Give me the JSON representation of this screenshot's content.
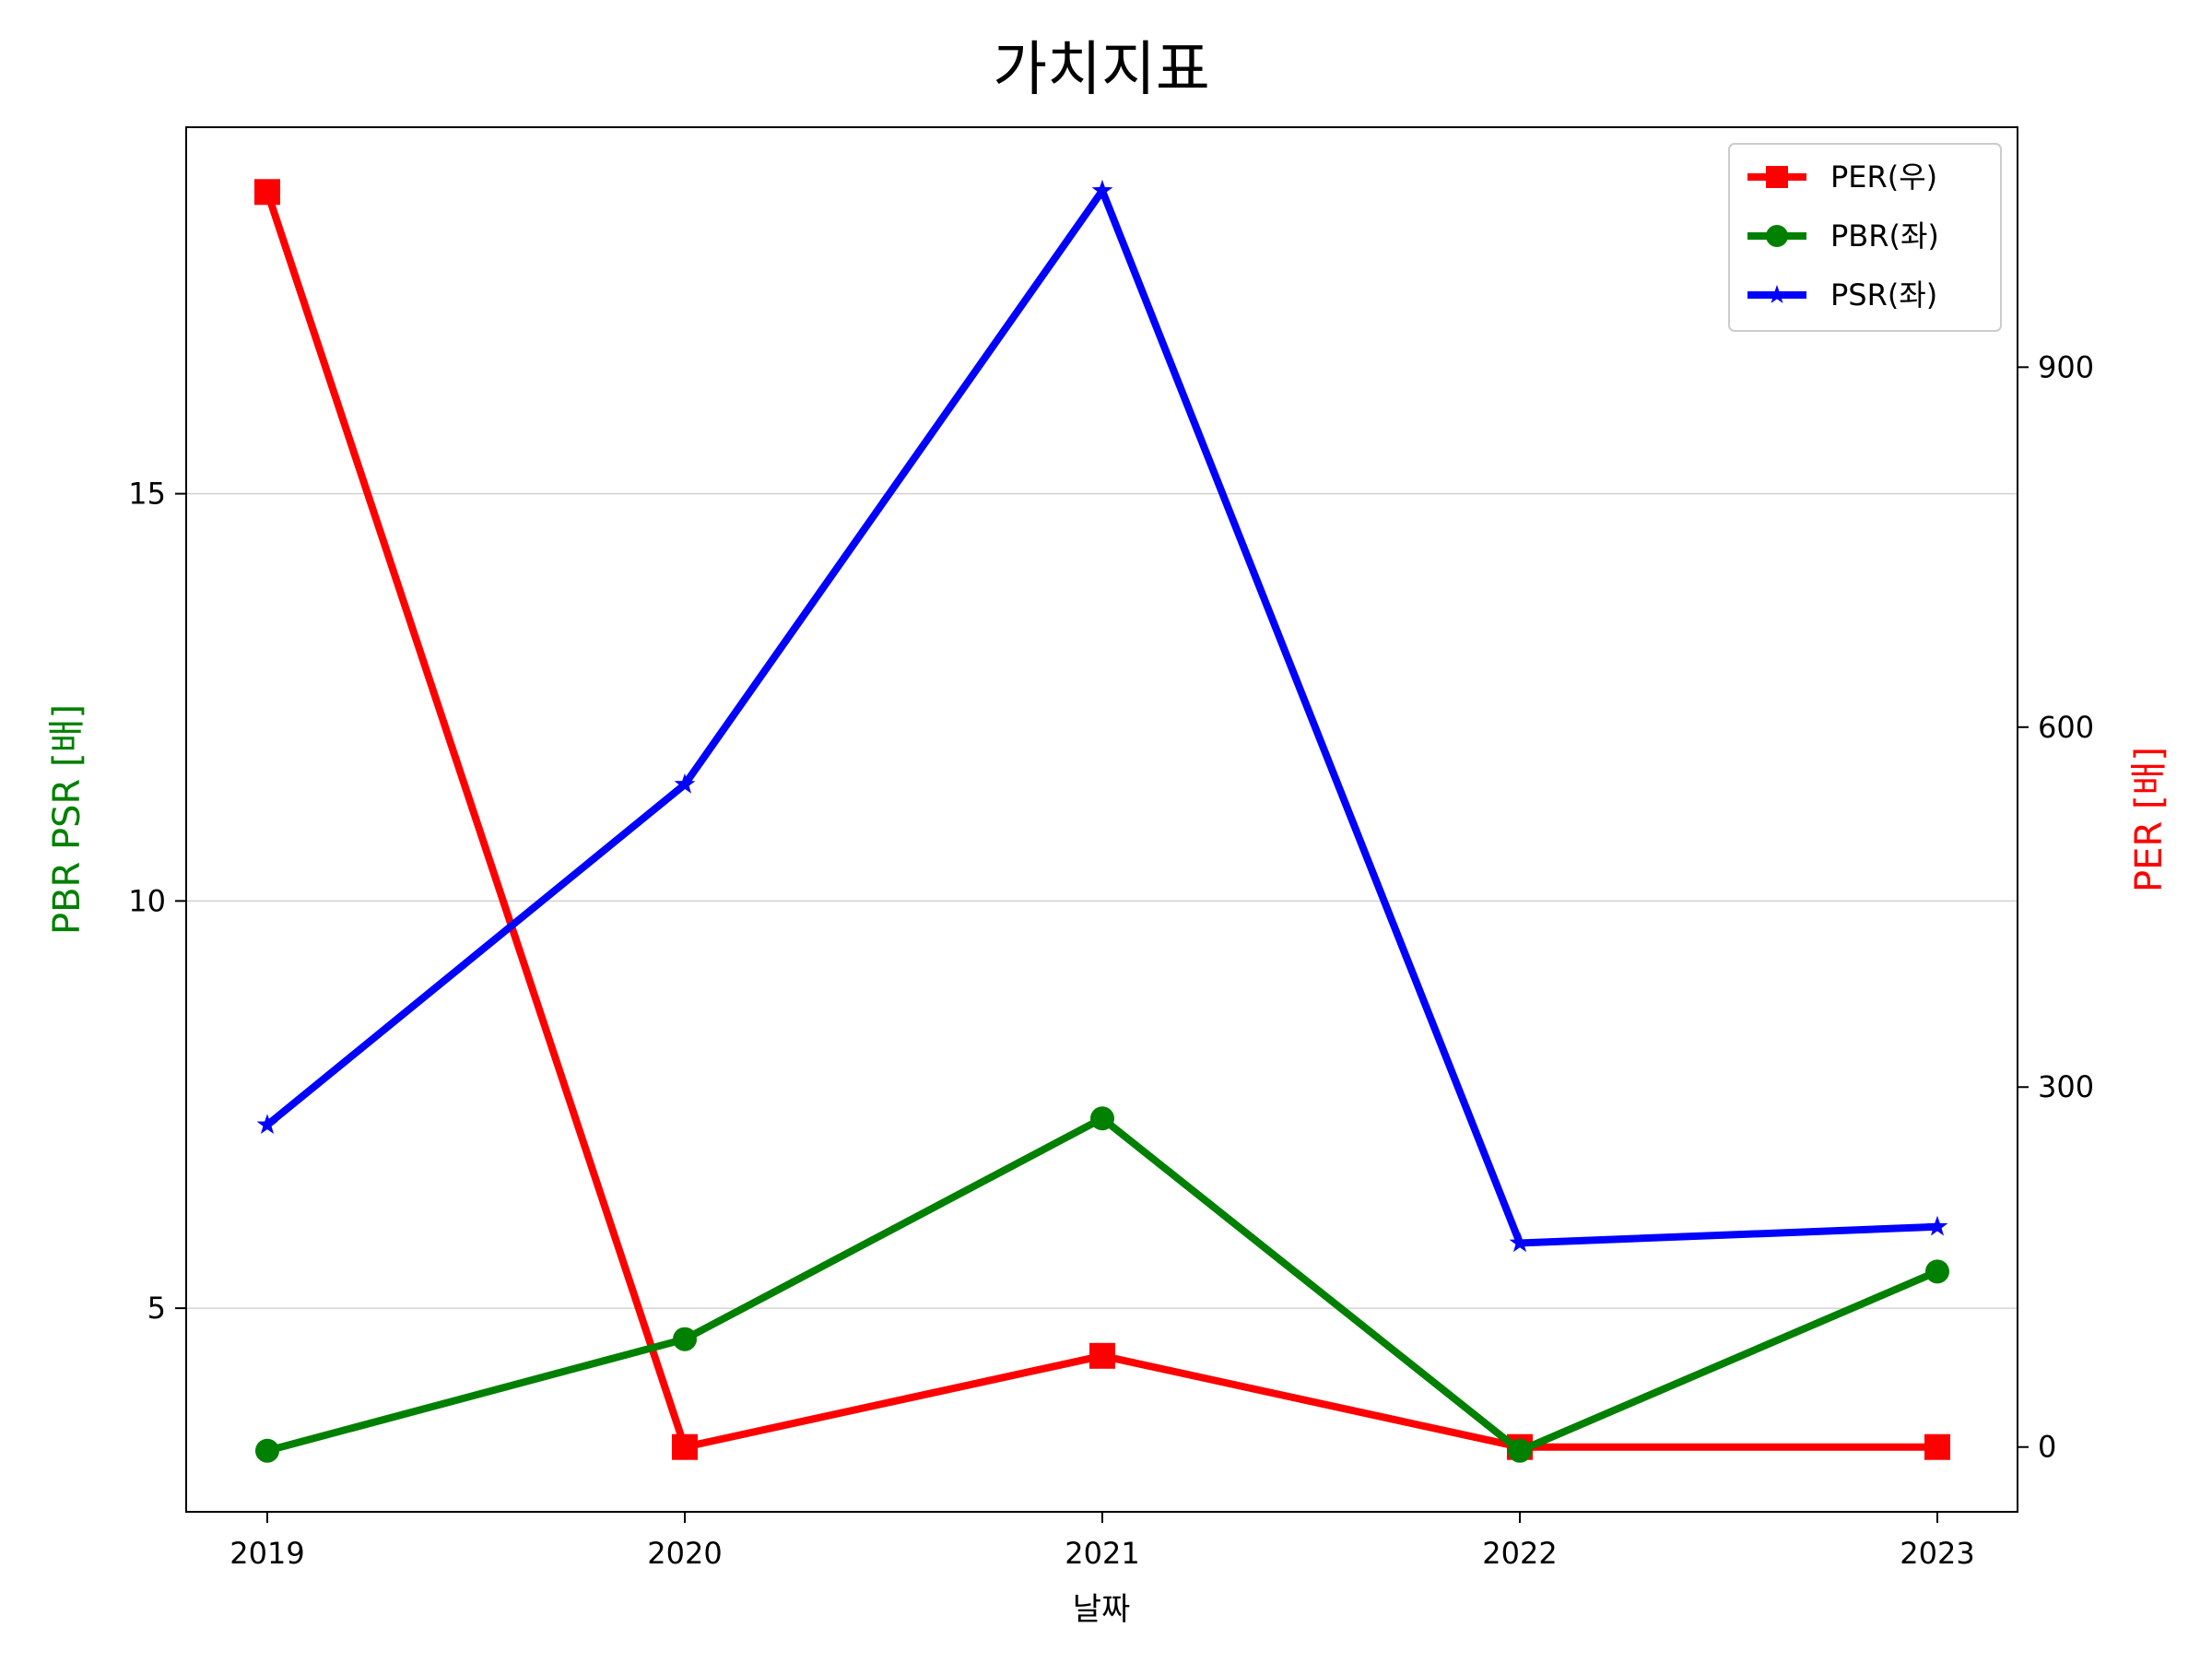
{
  "chart_data": {
    "type": "line",
    "title": "가치지표",
    "xlabel": "날짜",
    "ylabel_left": "PBR PSR [배]",
    "ylabel_right": "PER [배]",
    "categories": [
      "2019",
      "2020",
      "2021",
      "2022",
      "2023"
    ],
    "left_axis": {
      "ylim": [
        2.5,
        19.5
      ],
      "ticks": [
        5,
        10,
        15
      ]
    },
    "right_axis": {
      "ylim": [
        -54,
        1100
      ],
      "ticks": [
        0,
        300,
        600,
        900
      ]
    },
    "grid": "horizontal (left axis)",
    "legend_position": "top-right",
    "series": [
      {
        "name": "PER(우)",
        "axis": "right",
        "values": [
          1046,
          0,
          76,
          0,
          0
        ],
        "color": "#ff0000",
        "marker": "square"
      },
      {
        "name": "PBR(좌)",
        "axis": "left",
        "values": [
          3.25,
          4.62,
          7.33,
          3.25,
          5.45
        ],
        "color": "#008000",
        "marker": "circle"
      },
      {
        "name": "PSR(좌)",
        "axis": "left",
        "values": [
          7.25,
          11.43,
          18.72,
          5.8,
          6.0
        ],
        "color": "#0000ff",
        "marker": "star"
      }
    ],
    "colors": {
      "left_label": "#008000",
      "right_label": "#ff0000"
    }
  }
}
